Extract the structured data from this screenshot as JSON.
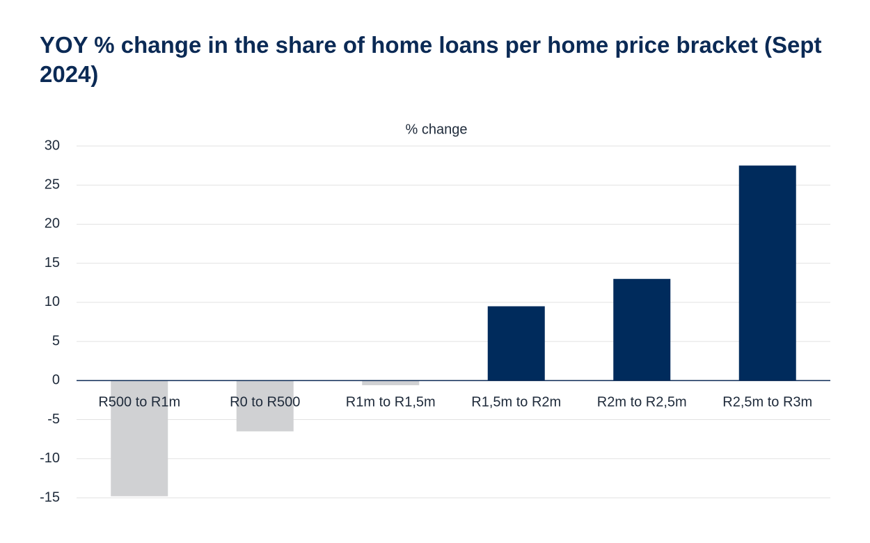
{
  "chart_data": {
    "type": "bar",
    "title": "YOY % change in the share of home loans per home price bracket (Sept 2024)",
    "subtitle": "% change",
    "categories": [
      "R500 to R1m",
      "R0 to R500",
      "R1m to R1,5m",
      "R1,5m to R2m",
      "R2m to R2,5m",
      "R2,5m to R3m"
    ],
    "values": [
      -14.8,
      -6.5,
      -0.6,
      9.5,
      13.0,
      27.5
    ],
    "colors": [
      "#d0d1d3",
      "#d0d1d3",
      "#d0d1d3",
      "#002b5c",
      "#002b5c",
      "#002b5c"
    ],
    "ylim": [
      -15,
      30
    ],
    "yticks": [
      -15,
      -10,
      -5,
      0,
      5,
      10,
      15,
      20,
      25,
      30
    ],
    "grid": true
  }
}
